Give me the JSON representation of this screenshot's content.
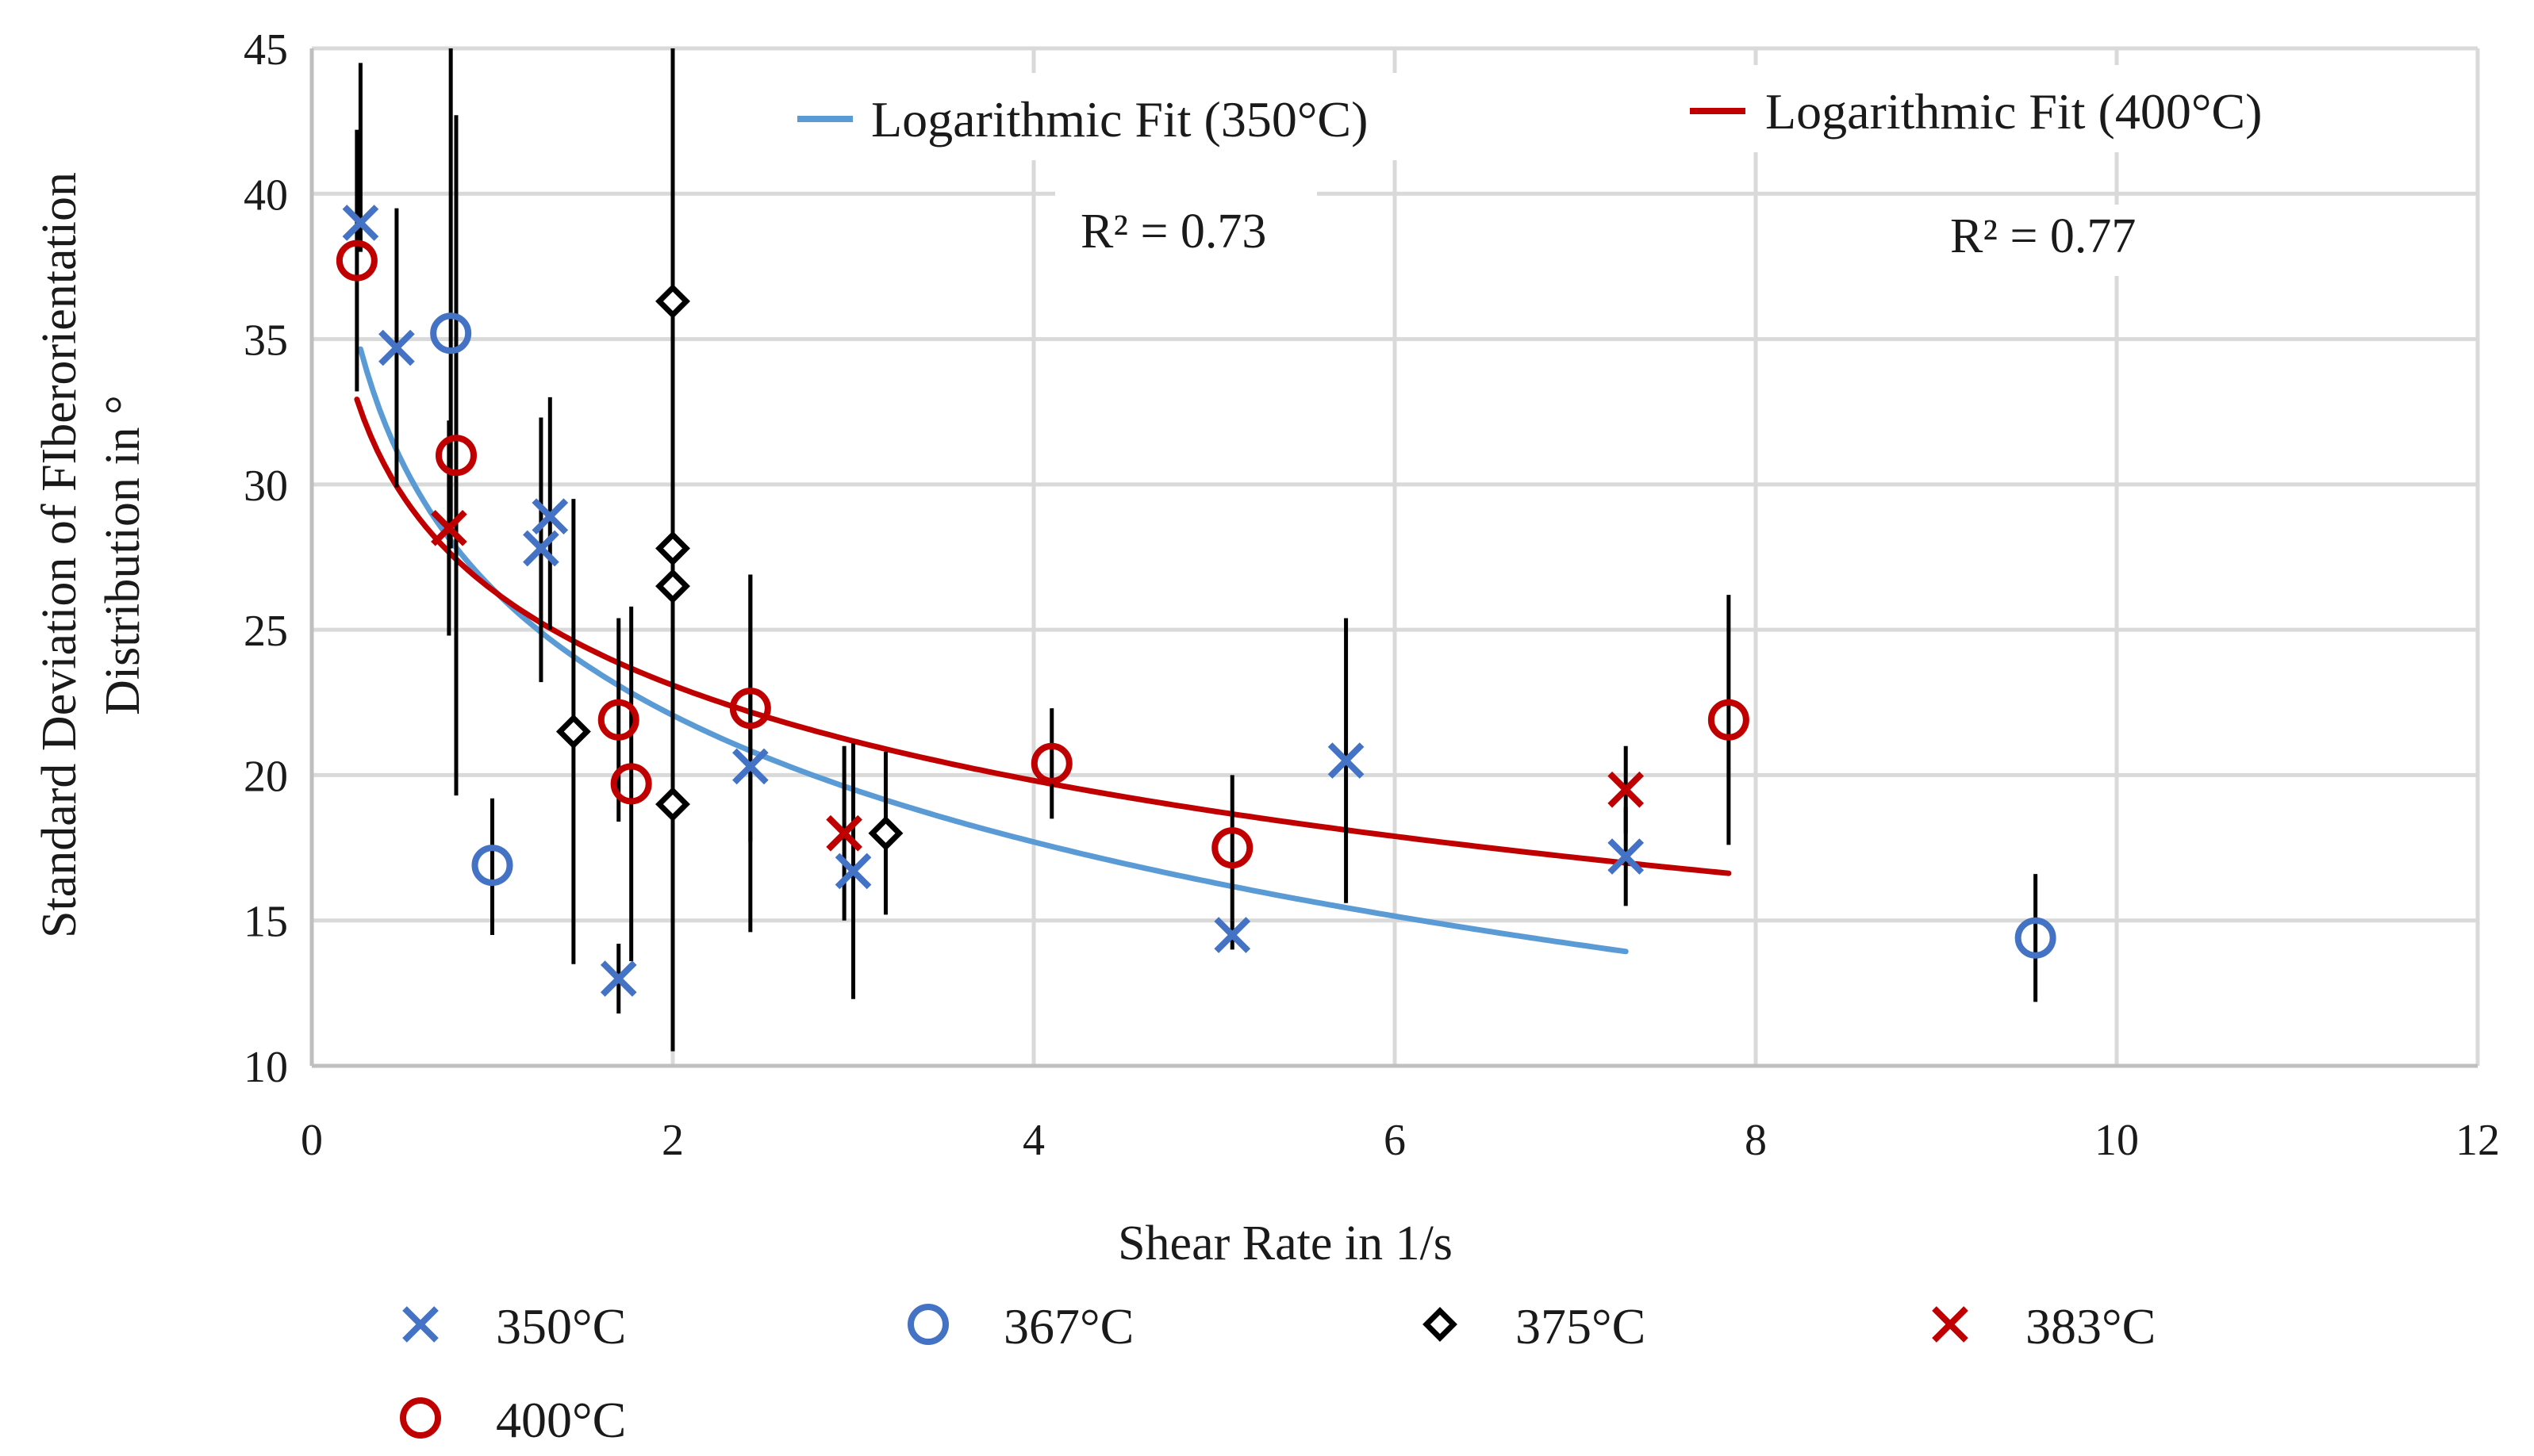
{
  "chart_data": {
    "type": "scatter",
    "xlabel": "Shear Rate in 1/s",
    "ylabel_lines": [
      "Standard Deviation of FIberorientation",
      "Distribution in °"
    ],
    "xlim": [
      0,
      12
    ],
    "ylim": [
      10,
      45
    ],
    "xticks": [
      0,
      2,
      4,
      6,
      8,
      10,
      12
    ],
    "yticks": [
      10,
      15,
      20,
      25,
      30,
      35,
      40,
      45
    ],
    "grid": true,
    "legend_position": "bottom",
    "series": [
      {
        "name": "350°C",
        "marker": "x",
        "color": "#4472C4",
        "points": [
          {
            "x": 0.27,
            "y": 39.0,
            "err": [
              38.0,
              44.5
            ]
          },
          {
            "x": 0.47,
            "y": 34.7,
            "err": [
              29.9,
              39.5
            ]
          },
          {
            "x": 1.27,
            "y": 27.8,
            "err": [
              23.2,
              32.3
            ]
          },
          {
            "x": 1.32,
            "y": 28.9,
            "err": [
              25.0,
              33.0
            ]
          },
          {
            "x": 1.7,
            "y": 13.0,
            "err": [
              11.8,
              14.2
            ]
          },
          {
            "x": 2.43,
            "y": 20.3,
            "err": [
              14.6,
              26.9
            ]
          },
          {
            "x": 3.0,
            "y": 16.7,
            "err": [
              12.3,
              21.1
            ]
          },
          {
            "x": 5.1,
            "y": 14.5,
            "err": [
              14.0,
              15.0
            ]
          },
          {
            "x": 5.73,
            "y": 20.5,
            "err": [
              15.6,
              25.4
            ]
          },
          {
            "x": 7.28,
            "y": 17.2,
            "err": [
              15.5,
              18.9
            ]
          }
        ]
      },
      {
        "name": "367°C",
        "marker": "circle",
        "color": "#4472C4",
        "points": [
          {
            "x": 0.77,
            "y": 35.2,
            "err": [
              27.8,
              45.0
            ]
          },
          {
            "x": 1.0,
            "y": 16.9,
            "err": [
              14.5,
              19.2
            ]
          },
          {
            "x": 9.55,
            "y": 14.4,
            "err": [
              12.2,
              16.6
            ]
          }
        ]
      },
      {
        "name": "375°C",
        "marker": "diamond",
        "color": "#000000",
        "points": [
          {
            "x": 1.45,
            "y": 21.5,
            "err": [
              13.5,
              29.5
            ]
          },
          {
            "x": 2.0,
            "y": 36.3,
            "err": [
              27.5,
              45.0
            ]
          },
          {
            "x": 2.0,
            "y": 27.8,
            "err": [
              17.0,
              38.5
            ]
          },
          {
            "x": 2.0,
            "y": 26.5,
            "err": [
              19.5,
              33.5
            ]
          },
          {
            "x": 2.0,
            "y": 19.0,
            "err": [
              10.5,
              27.5
            ]
          },
          {
            "x": 3.18,
            "y": 18.0,
            "err": [
              15.2,
              20.8
            ]
          }
        ]
      },
      {
        "name": "383°C",
        "marker": "x",
        "color": "#C00000",
        "points": [
          {
            "x": 0.76,
            "y": 28.5,
            "err": [
              24.8,
              32.2
            ]
          },
          {
            "x": 2.95,
            "y": 18.0,
            "err": [
              15.0,
              21.0
            ]
          },
          {
            "x": 7.28,
            "y": 19.5,
            "err": [
              18.0,
              21.0
            ]
          }
        ]
      },
      {
        "name": "400°C",
        "marker": "circle",
        "color": "#C00000",
        "points": [
          {
            "x": 0.25,
            "y": 37.7,
            "err": [
              33.2,
              42.2
            ]
          },
          {
            "x": 0.8,
            "y": 31.0,
            "err": [
              19.3,
              42.7
            ]
          },
          {
            "x": 1.7,
            "y": 21.9,
            "err": [
              18.4,
              25.4
            ]
          },
          {
            "x": 1.77,
            "y": 19.7,
            "err": [
              13.6,
              25.8
            ]
          },
          {
            "x": 2.43,
            "y": 22.3,
            "err": [
              17.7,
              26.9
            ]
          },
          {
            "x": 4.1,
            "y": 20.4,
            "err": [
              18.5,
              22.3
            ]
          },
          {
            "x": 5.1,
            "y": 17.5,
            "err": [
              15.0,
              20.0
            ]
          },
          {
            "x": 7.85,
            "y": 21.9,
            "err": [
              17.6,
              26.2
            ]
          }
        ]
      }
    ],
    "fits": [
      {
        "name": "Logarithmic Fit (350°C)",
        "color": "#5B9BD5",
        "a": 26.42,
        "b": -6.29,
        "x_range": [
          0.27,
          7.28
        ],
        "r2_label": "R² = 0.73"
      },
      {
        "name": "Logarithmic Fit (400°C)",
        "color": "#C00000",
        "a": 26.37,
        "b": -4.73,
        "x_range": [
          0.25,
          7.85
        ],
        "r2_label": "R² = 0.77"
      }
    ]
  }
}
